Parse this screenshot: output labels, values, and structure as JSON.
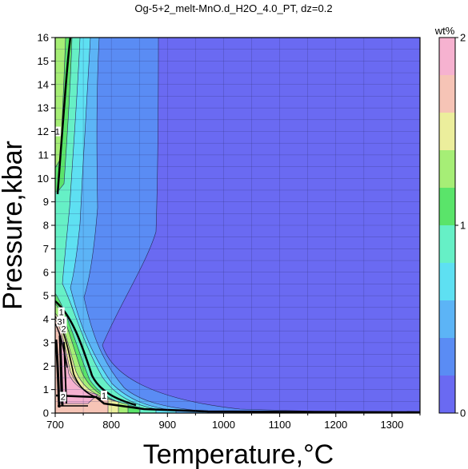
{
  "chart_data": {
    "type": "contour",
    "title": "Og-5+2_melt-MnO.d_H2O_4.0_PT, dz=0.2",
    "xlabel": "Temperature,°C",
    "ylabel": "Pressure,kbar",
    "xlim": [
      700,
      1350
    ],
    "ylim": [
      0,
      16
    ],
    "x_ticks": [
      "700",
      "800",
      "900",
      "1000",
      "1100",
      "1200",
      "1300"
    ],
    "y_ticks": [
      "0",
      "1",
      "2",
      "3",
      "4",
      "5",
      "6",
      "7",
      "8",
      "9",
      "10",
      "11",
      "12",
      "13",
      "14",
      "15",
      "16"
    ],
    "grid": true,
    "colorbar": {
      "label": "wt%",
      "range": [
        0,
        2
      ],
      "ticks": [
        "0",
        "1",
        "2"
      ],
      "levels": [
        {
          "from": 0.0,
          "to": 0.2,
          "color": "#6a6af2"
        },
        {
          "from": 0.2,
          "to": 0.4,
          "color": "#5a8cf4"
        },
        {
          "from": 0.4,
          "to": 0.6,
          "color": "#5cb4f6"
        },
        {
          "from": 0.6,
          "to": 0.8,
          "color": "#5ee0f2"
        },
        {
          "from": 0.8,
          "to": 1.0,
          "color": "#66f0c6"
        },
        {
          "from": 1.0,
          "to": 1.2,
          "color": "#5ae46a"
        },
        {
          "from": 1.2,
          "to": 1.4,
          "color": "#a6ee76"
        },
        {
          "from": 1.4,
          "to": 1.6,
          "color": "#ecee9c"
        },
        {
          "from": 1.6,
          "to": 1.8,
          "color": "#f6c4b6"
        },
        {
          "from": 1.8,
          "to": 2.0,
          "color": "#f6b2d0"
        }
      ]
    },
    "contour_labels": [
      {
        "text": "1",
        "x": 704,
        "y": 12.0
      },
      {
        "text": "1",
        "x": 711,
        "y": 4.3
      },
      {
        "text": "1",
        "x": 715,
        "y": 3.9
      },
      {
        "text": "2",
        "x": 715,
        "y": 3.6
      },
      {
        "text": "3",
        "x": 708,
        "y": 3.9
      },
      {
        "text": "2",
        "x": 714,
        "y": 0.7
      },
      {
        "text": "1",
        "x": 787,
        "y": 0.75
      }
    ]
  }
}
